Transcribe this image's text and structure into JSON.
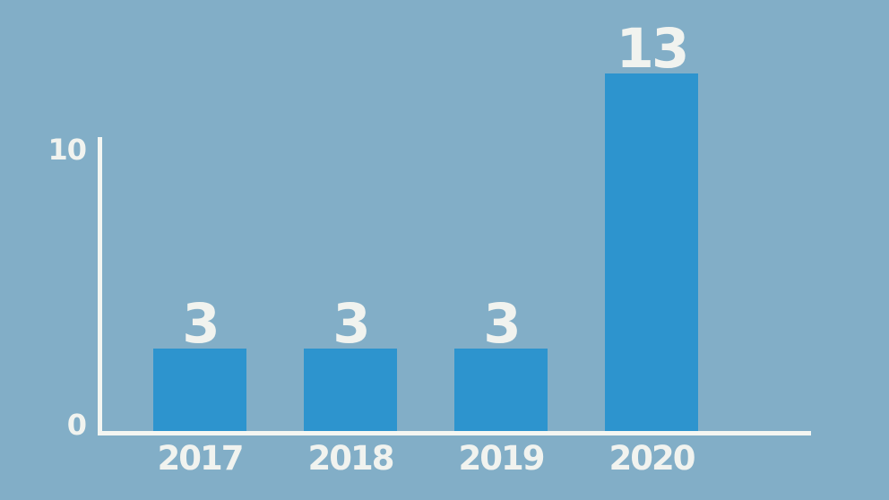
{
  "colors": {
    "background": "#82AEC7",
    "bar": "#2D94CE",
    "text": "#F1F3EF",
    "axis": "#F4F6F2"
  },
  "chart_data": {
    "type": "bar",
    "title": "",
    "xlabel": "",
    "ylabel": "",
    "categories": [
      "2017",
      "2018",
      "2019",
      "2020"
    ],
    "values": [
      3,
      3,
      3,
      13
    ],
    "bar_value_labels": [
      "3",
      "3",
      "3",
      "13"
    ],
    "ylim": [
      0,
      13
    ],
    "y_axis_ticks": [
      {
        "value": 0,
        "label": "0"
      },
      {
        "value": 10,
        "label": "10"
      }
    ],
    "grid": false,
    "legend": "none",
    "bar_color": "#2D94CE",
    "background_color": "#82AEC7",
    "label_color": "#F1F3EF"
  }
}
